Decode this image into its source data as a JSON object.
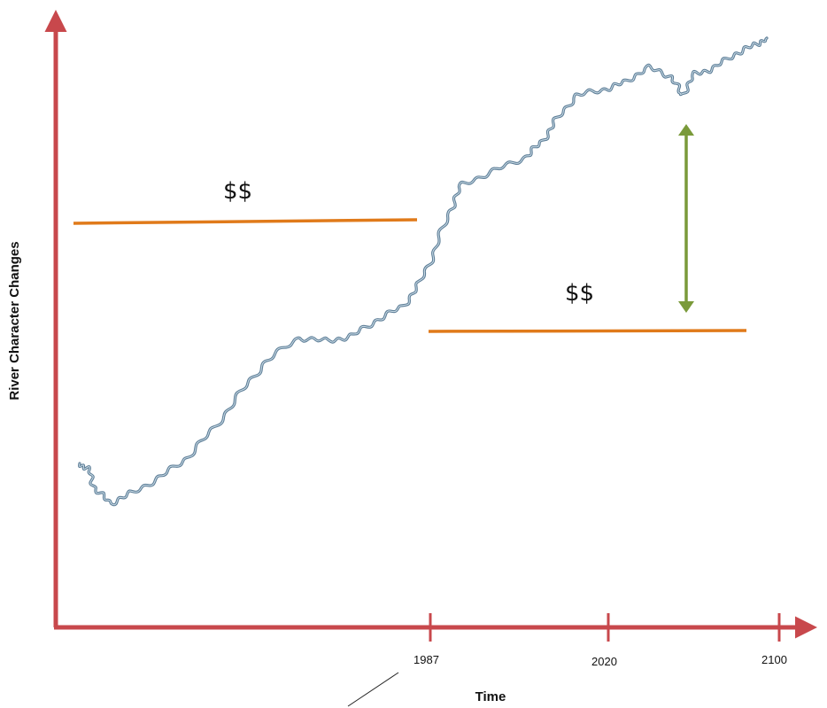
{
  "colors": {
    "axis": "#c8484c",
    "cost_line": "#e07a1a",
    "arrow": "#7a9a3a",
    "river_outer": "#5f7f98",
    "river_inner": "#c9dbe6"
  },
  "x_axis": {
    "title": "Time",
    "ticks": [
      "1987",
      "2020",
      "2100"
    ]
  },
  "y_axis": {
    "title": "River Character Changes"
  },
  "cost_lines": [
    {
      "label": "$$",
      "period": "before 1987"
    },
    {
      "label": "$$",
      "period": "1987 onward"
    }
  ],
  "river_trend": "rising",
  "gap_arrow": "double-headed vertical, between river line and lower cost line"
}
